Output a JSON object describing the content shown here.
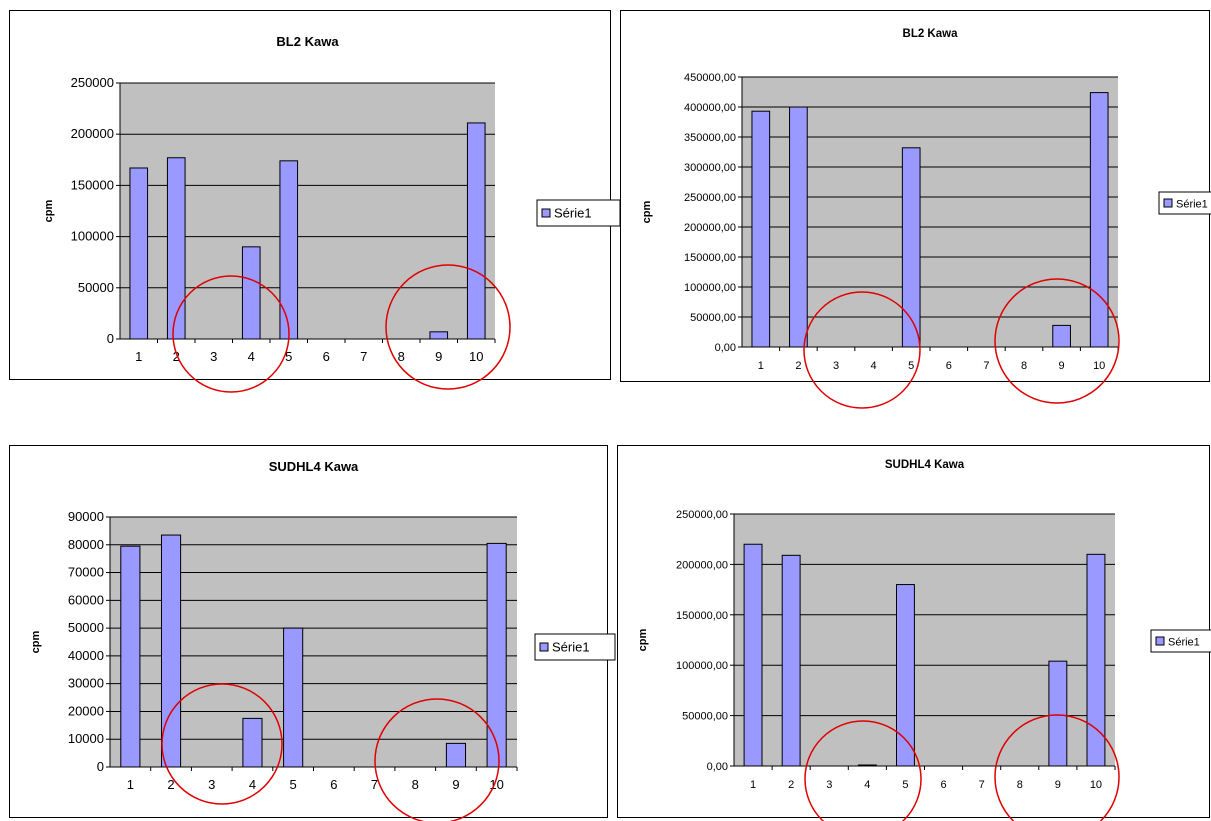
{
  "colors": {
    "bar_fill": "#9999ff",
    "bar_stroke": "#000000",
    "plot_bg": "#c0c0c0",
    "circle": "#e00000"
  },
  "chart_data": [
    {
      "id": "bl2-left",
      "type": "bar",
      "title": "BL2 Kawa",
      "ylabel": "cpm",
      "xlabel": "",
      "categories": [
        "1",
        "2",
        "3",
        "4",
        "5",
        "6",
        "7",
        "8",
        "9",
        "10"
      ],
      "series": [
        {
          "name": "Série1",
          "values": [
            167000,
            177000,
            0,
            90000,
            174000,
            0,
            0,
            0,
            7000,
            211000
          ]
        }
      ],
      "ylim": [
        0,
        250000
      ],
      "yticks": [
        0,
        50000,
        100000,
        150000,
        200000,
        250000
      ],
      "ytick_labels": [
        "0",
        "50000",
        "100000",
        "150000",
        "200000",
        "250000"
      ],
      "grid": true,
      "legend": "right",
      "annotations": [
        "circle around 3-4",
        "circle around 8-9"
      ]
    },
    {
      "id": "bl2-right",
      "type": "bar",
      "title": "BL2 Kawa",
      "ylabel": "cpm",
      "xlabel": "",
      "categories": [
        "1",
        "2",
        "3",
        "4",
        "5",
        "6",
        "7",
        "8",
        "9",
        "10"
      ],
      "series": [
        {
          "name": "Série1",
          "values": [
            393000,
            400000,
            0,
            0,
            332000,
            0,
            0,
            0,
            36000,
            424000
          ]
        }
      ],
      "ylim": [
        0,
        450000
      ],
      "yticks": [
        0,
        50000,
        100000,
        150000,
        200000,
        250000,
        300000,
        350000,
        400000,
        450000
      ],
      "ytick_labels": [
        "0,00",
        "50000,00",
        "100000,00",
        "150000,00",
        "200000,00",
        "250000,00",
        "300000,00",
        "350000,00",
        "400000,00",
        "450000,00"
      ],
      "grid": true,
      "legend": "right",
      "annotations": [
        "circle around 3-4",
        "circle around 8-9"
      ]
    },
    {
      "id": "sudhl4-left",
      "type": "bar",
      "title": "SUDHL4 Kawa",
      "ylabel": "cpm",
      "xlabel": "",
      "categories": [
        "1",
        "2",
        "3",
        "4",
        "5",
        "6",
        "7",
        "8",
        "9",
        "10"
      ],
      "series": [
        {
          "name": "Série1",
          "values": [
            79500,
            83500,
            0,
            17500,
            50000,
            0,
            0,
            0,
            8500,
            80500
          ]
        }
      ],
      "ylim": [
        0,
        90000
      ],
      "yticks": [
        0,
        10000,
        20000,
        30000,
        40000,
        50000,
        60000,
        70000,
        80000,
        90000
      ],
      "ytick_labels": [
        "0",
        "10000",
        "20000",
        "30000",
        "40000",
        "50000",
        "60000",
        "70000",
        "80000",
        "90000"
      ],
      "grid": true,
      "legend": "right",
      "annotations": [
        "circle around 3-4",
        "circle around 8-9"
      ]
    },
    {
      "id": "sudhl4-right",
      "type": "bar",
      "title": "SUDHL4 Kawa",
      "ylabel": "cpm",
      "xlabel": "",
      "categories": [
        "1",
        "2",
        "3",
        "4",
        "5",
        "6",
        "7",
        "8",
        "9",
        "10"
      ],
      "series": [
        {
          "name": "Série1",
          "values": [
            220000,
            209000,
            0,
            1000,
            180000,
            0,
            0,
            0,
            104000,
            210000
          ]
        }
      ],
      "ylim": [
        0,
        250000
      ],
      "yticks": [
        0,
        50000,
        100000,
        150000,
        200000,
        250000
      ],
      "ytick_labels": [
        "0,00",
        "50000,00",
        "100000,00",
        "150000,00",
        "200000,00",
        "250000,00"
      ],
      "grid": true,
      "legend": "right",
      "annotations": [
        "circle around 3-4",
        "circle around 8-9"
      ]
    }
  ]
}
